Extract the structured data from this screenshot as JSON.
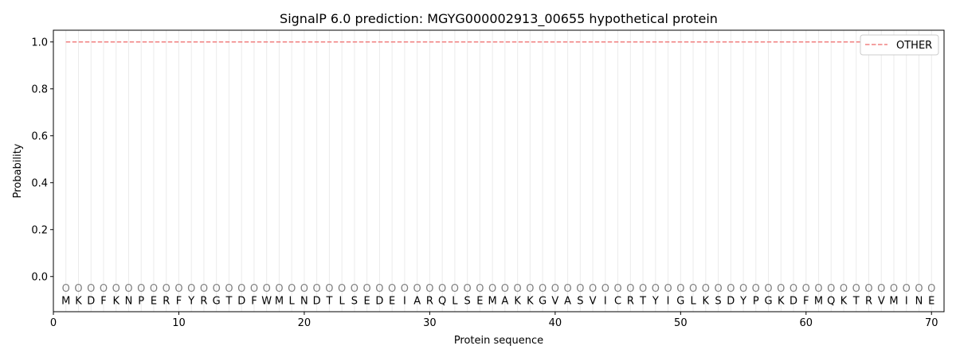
{
  "chart_data": {
    "type": "line",
    "title": "SignalP 6.0 prediction: MGYG000002913_00655 hypothetical protein",
    "xlabel": "Protein sequence",
    "ylabel": "Probability",
    "xlim": [
      0,
      71
    ],
    "ylim": [
      -0.15,
      1.05
    ],
    "xticks": [
      0,
      10,
      20,
      30,
      40,
      50,
      60,
      70
    ],
    "yticks": [
      0.0,
      0.2,
      0.4,
      0.6,
      0.8,
      1.0
    ],
    "ytick_labels": [
      "0.0",
      "0.2",
      "0.4",
      "0.6",
      "0.8",
      "1.0"
    ],
    "grid": "vertical lines at each residue",
    "legend_position": "top-right",
    "sequence": [
      "M",
      "K",
      "D",
      "F",
      "K",
      "N",
      "P",
      "E",
      "R",
      "F",
      "Y",
      "R",
      "G",
      "T",
      "D",
      "F",
      "W",
      "M",
      "L",
      "N",
      "D",
      "T",
      "L",
      "S",
      "E",
      "D",
      "E",
      "I",
      "A",
      "R",
      "Q",
      "L",
      "S",
      "E",
      "M",
      "A",
      "K",
      "K",
      "G",
      "V",
      "A",
      "S",
      "V",
      "I",
      "C",
      "R",
      "T",
      "Y",
      "I",
      "G",
      "L",
      "K",
      "S",
      "D",
      "Y",
      "P",
      "G",
      "K",
      "D",
      "F",
      "M",
      "Q",
      "K",
      "T",
      "R",
      "V",
      "M",
      "I",
      "N",
      "E"
    ],
    "per_residue_label": "O",
    "series": [
      {
        "name": "OTHER",
        "color": "#f08080",
        "style": "dashed",
        "x_range": [
          1,
          70
        ],
        "value": 1.0
      }
    ]
  }
}
